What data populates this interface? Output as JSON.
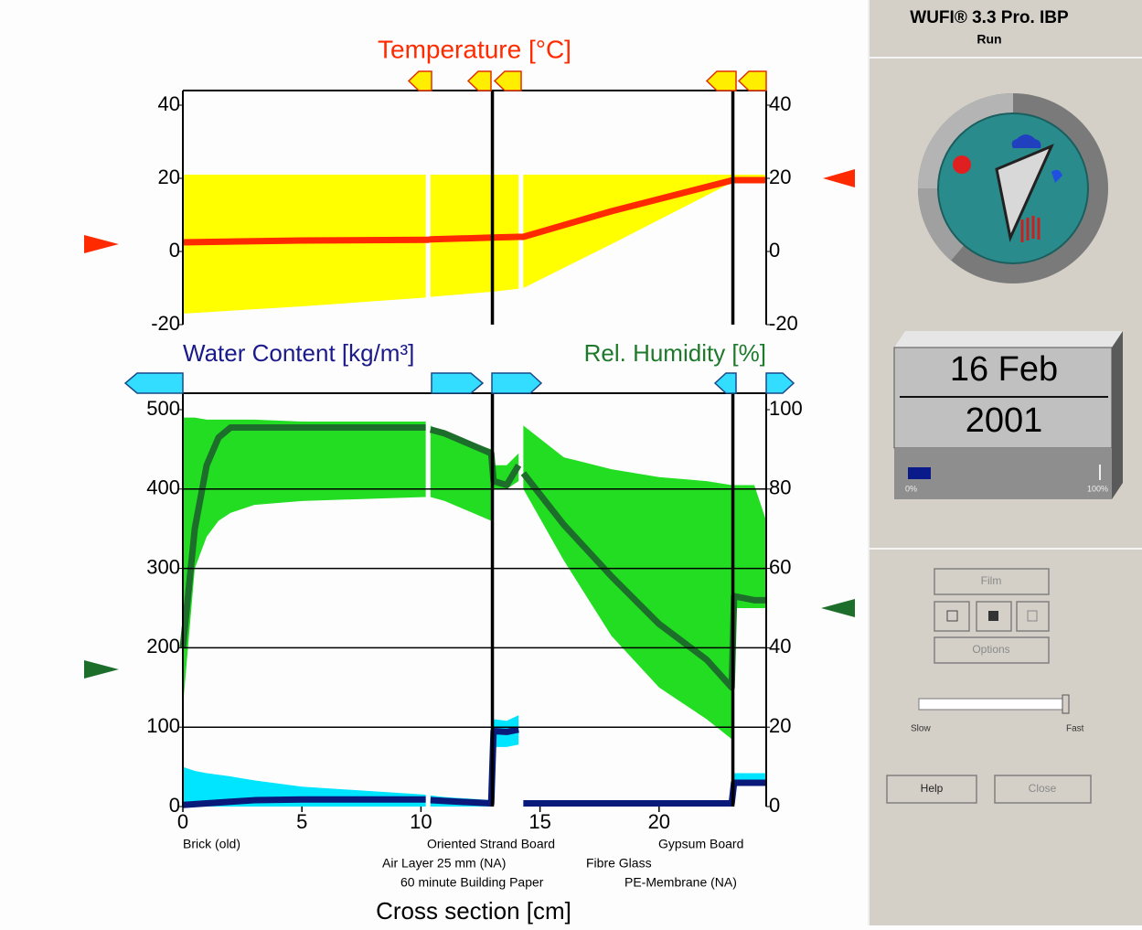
{
  "app": {
    "title": "WUFI® 3.3 Pro. IBP",
    "status": "Run"
  },
  "date": {
    "day": "16 Feb",
    "year": "2001",
    "progress_min_label": "0%",
    "progress_max_label": "100%"
  },
  "controls": {
    "buttons": [
      "Film",
      "Options",
      "Help",
      "Close"
    ],
    "speed_labels": [
      "Slow",
      "Fast"
    ]
  },
  "chart_data": [
    {
      "type": "profile",
      "title": "Temperature [°C]",
      "xlim": [
        0,
        24.5
      ],
      "ylim": [
        -20,
        40
      ],
      "yticks": [
        -20,
        0,
        20,
        40
      ],
      "y2lim": [
        -20,
        40
      ],
      "y2ticks": [
        -20,
        0,
        20,
        40
      ],
      "grid": false,
      "monitors": [
        13,
        23.1
      ],
      "x": [
        0,
        5,
        10.2,
        10.3,
        10.4,
        13,
        14.1,
        14.2,
        14.3,
        18,
        23.1,
        24.5
      ],
      "series": [
        {
          "color": "#ffff00",
          "values": [
            21,
            21,
            21,
            null,
            21,
            21,
            21,
            null,
            21,
            21,
            21,
            21
          ],
          "base": [
            -17,
            -15,
            -12.6,
            null,
            -12.4,
            -11,
            -10.2,
            null,
            -10,
            2,
            19,
            19
          ]
        },
        {
          "color": "#ff2a00",
          "values": [
            2.5,
            3,
            3.2,
            3.2,
            3.3,
            3.8,
            4,
            4,
            4,
            11,
            19.5,
            19.5
          ]
        }
      ]
    },
    {
      "type": "profile",
      "ylabel": "Water Content [kg/m³]",
      "y2label": "Rel. Humidity [%]",
      "xlabel": "Cross section [cm]",
      "xlim": [
        0,
        24.5
      ],
      "xticks": [
        0,
        5,
        10,
        15,
        20
      ],
      "ylim": [
        0,
        500
      ],
      "yticks": [
        0,
        100,
        200,
        300,
        400,
        500
      ],
      "y2lim": [
        0,
        100
      ],
      "y2ticks": [
        0,
        20,
        40,
        60,
        80,
        100
      ],
      "grid": true,
      "monitors": [
        13,
        23.1
      ],
      "layers": [
        "Brick (old)",
        "Oriented Strand Board",
        "Gypsum Board",
        "Air Layer 25 mm (NA)",
        "Fibre Glass",
        "60 minute Building Paper",
        "PE-Membrane (NA)"
      ],
      "x": [
        0,
        0.5,
        1,
        1.5,
        2,
        3,
        5,
        10.2,
        10.3,
        10.4,
        11,
        12.95,
        13.05,
        13.6,
        14.1,
        14.2,
        14.3,
        16,
        18,
        20,
        22,
        23.05,
        23.15,
        24,
        24.5
      ],
      "series": [
        {
          "color": "#22dd22",
          "axis": "y2",
          "values": [
            98,
            98,
            97.5,
            97.5,
            97.5,
            97.5,
            97,
            97,
            null,
            96,
            94,
            90,
            86,
            86,
            89,
            null,
            96,
            88,
            85,
            83,
            82,
            81,
            81,
            81,
            72
          ],
          "base": [
            25,
            60,
            68,
            72,
            74,
            76,
            77,
            78,
            null,
            78,
            77,
            72,
            80,
            80,
            82,
            null,
            80,
            62,
            43,
            30,
            22,
            17,
            50,
            50,
            50
          ]
        },
        {
          "color": "#00e5ff",
          "values": [
            50,
            45,
            42,
            40,
            38,
            33,
            25,
            15,
            null,
            14,
            12,
            8,
            110,
            108,
            115,
            null,
            6,
            6,
            6,
            6,
            6,
            6,
            42,
            42,
            42
          ],
          "base": [
            0,
            0,
            0,
            0,
            0,
            0,
            0,
            0,
            null,
            0,
            0,
            0,
            75,
            75,
            78,
            null,
            0,
            0,
            0,
            0,
            0,
            0,
            28,
            28,
            28
          ]
        },
        {
          "color": "#1d6e2a",
          "axis": "y2",
          "values": [
            40,
            70,
            86,
            93,
            95.5,
            95.5,
            95.5,
            95.5,
            null,
            95,
            94,
            89,
            82,
            81,
            86,
            null,
            84,
            71,
            58,
            46,
            37,
            30,
            53,
            52,
            52
          ]
        },
        {
          "color": "#0a1a7a",
          "values": [
            2,
            3,
            4,
            5,
            6,
            8,
            9,
            9,
            null,
            8,
            7,
            4,
            95,
            94,
            97,
            null,
            4,
            4,
            4,
            4,
            4,
            4,
            30,
            30,
            30
          ]
        }
      ]
    }
  ]
}
